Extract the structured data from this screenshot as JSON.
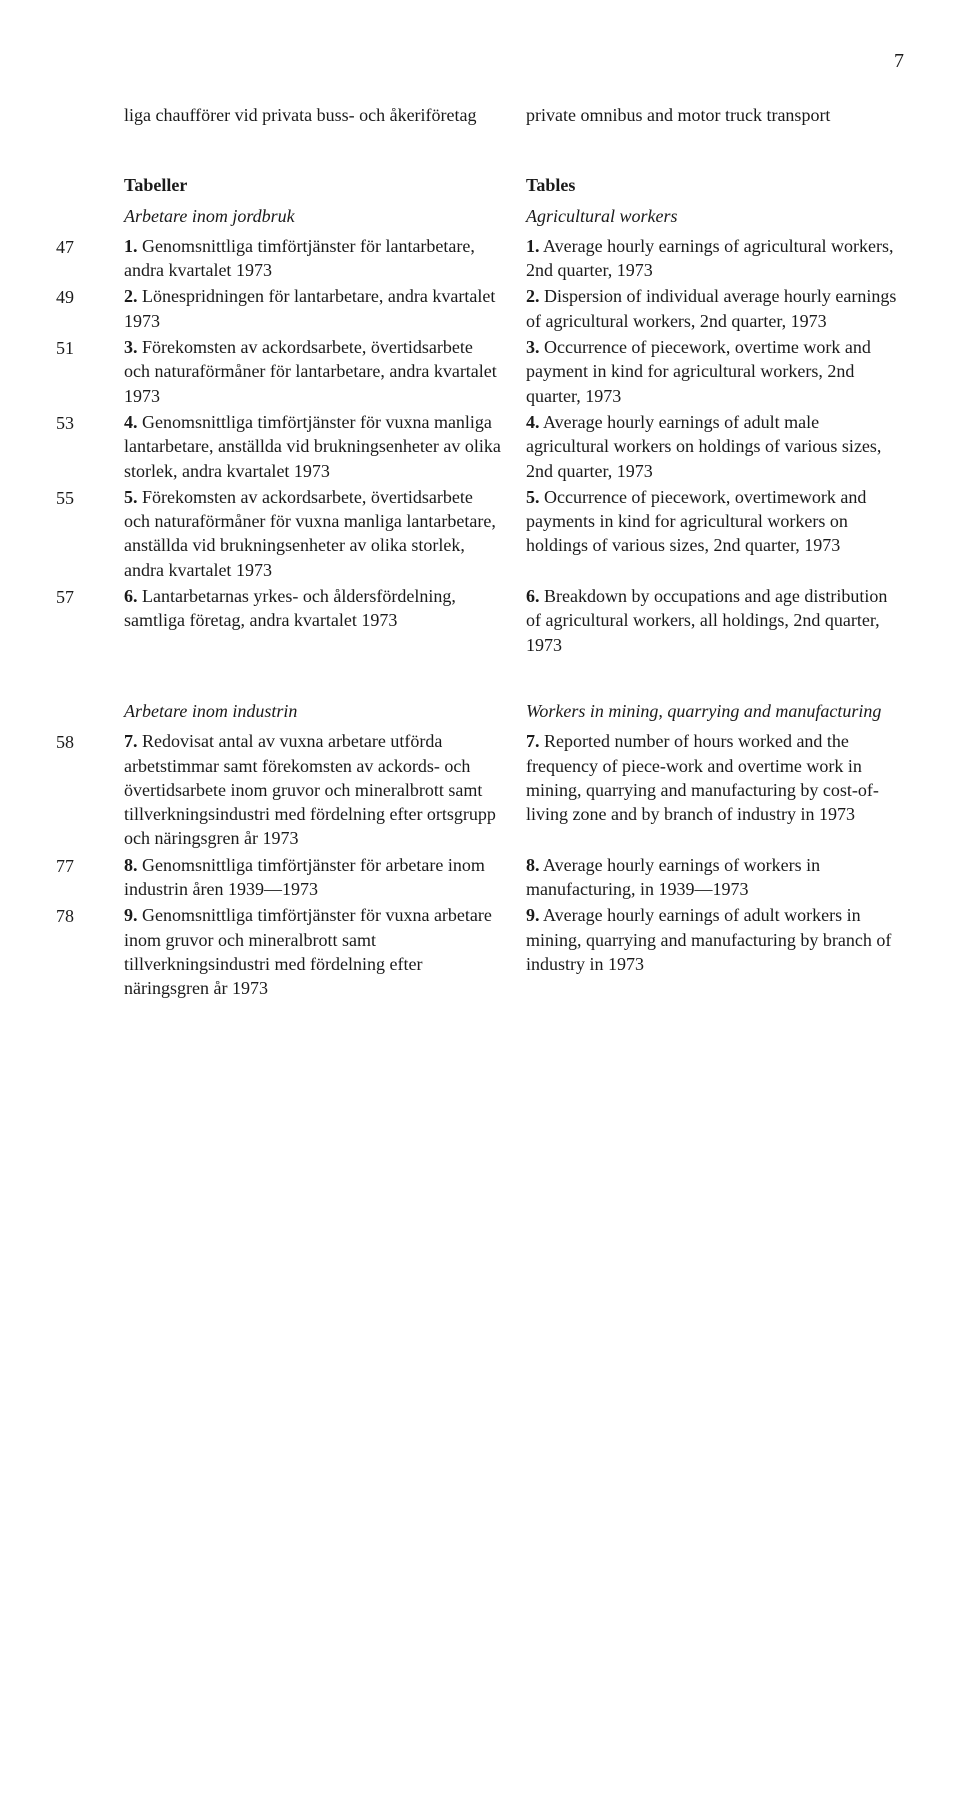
{
  "pageNumber": "7",
  "topRow": {
    "left": "liga chaufförer vid privata buss- och åkeriföretag",
    "right": "private omnibus and motor truck transport"
  },
  "section1": {
    "headingLeft": "Tabeller",
    "headingRight": "Tables",
    "subheadingLeft": "Arbetare inom jordbruk",
    "subheadingRight": "Agricultural workers",
    "rows": [
      {
        "page": "47",
        "numLeft": "1.",
        "textLeft": " Genomsnittliga timförtjänster för lantarbetare, andra kvartalet 1973",
        "numRight": "1.",
        "textRight": " Average hourly earnings of agricultural workers, 2nd quarter, 1973"
      },
      {
        "page": "49",
        "numLeft": "2.",
        "textLeft": " Lönespridningen för lantarbetare, andra kvartalet 1973",
        "numRight": "2.",
        "textRight": " Dispersion of individual average hourly earnings of agricultural workers, 2nd quarter, 1973"
      },
      {
        "page": "51",
        "numLeft": "3.",
        "textLeft": " Förekomsten av ackordsarbete, övertidsarbete och naturaförmåner för lantarbetare, andra kvartalet 1973",
        "numRight": "3.",
        "textRight": " Occurrence of piecework, overtime work and payment in kind for agricultural workers, 2nd quarter, 1973"
      },
      {
        "page": "53",
        "numLeft": "4.",
        "textLeft": " Genomsnittliga timförtjänster för vuxna manliga lantarbetare, anställda vid brukningsenheter av olika storlek, andra kvartalet 1973",
        "numRight": "4.",
        "textRight": " Average hourly earnings of adult male agricultural workers on holdings of various sizes, 2nd quarter, 1973"
      },
      {
        "page": "55",
        "numLeft": "5.",
        "textLeft": " Förekomsten av ackordsarbete, övertidsarbete och naturaförmåner för vuxna manliga lantarbetare, anställda vid brukningsenheter av olika storlek, andra kvartalet 1973",
        "numRight": "5.",
        "textRight": " Occurrence of piecework, overtimework and payments in kind for agricultural workers on holdings of various sizes, 2nd quarter, 1973"
      },
      {
        "page": "57",
        "numLeft": "6.",
        "textLeft": " Lantarbetarnas yrkes- och åldersfördelning, samtliga företag, andra kvartalet 1973",
        "numRight": "6.",
        "textRight": " Breakdown by occupations and age distribution of agricultural workers, all holdings, 2nd quarter, 1973"
      }
    ]
  },
  "section2": {
    "subheadingLeft": "Arbetare inom industrin",
    "subheadingRight": "Workers in mining, quarrying and manufacturing",
    "rows": [
      {
        "page": "58",
        "numLeft": "7.",
        "textLeft": " Redovisat antal av vuxna arbetare utförda arbetstimmar samt förekomsten av ackords- och övertidsarbete inom gruvor och mineralbrott samt tillverkningsindustri med fördelning efter ortsgrupp och näringsgren år 1973",
        "numRight": "7.",
        "textRight": " Reported number of hours worked and the frequency of piece-work and overtime work in mining, quarrying and manufacturing by cost-of-living zone and by branch of industry in 1973"
      },
      {
        "page": "77",
        "numLeft": "8.",
        "textLeft": " Genomsnittliga timförtjänster för arbetare inom industrin åren 1939—1973",
        "numRight": "8.",
        "textRight": " Average hourly earnings of workers in manufacturing, in 1939—1973"
      },
      {
        "page": "78",
        "numLeft": "9.",
        "textLeft": " Genomsnittliga timförtjänster för vuxna arbetare inom gruvor och mineralbrott samt tillverkningsindustri med fördelning efter näringsgren år 1973",
        "numRight": "9.",
        "textRight": " Average hourly earnings of adult workers in mining, quarrying and manufacturing by branch of industry in 1973"
      }
    ]
  }
}
